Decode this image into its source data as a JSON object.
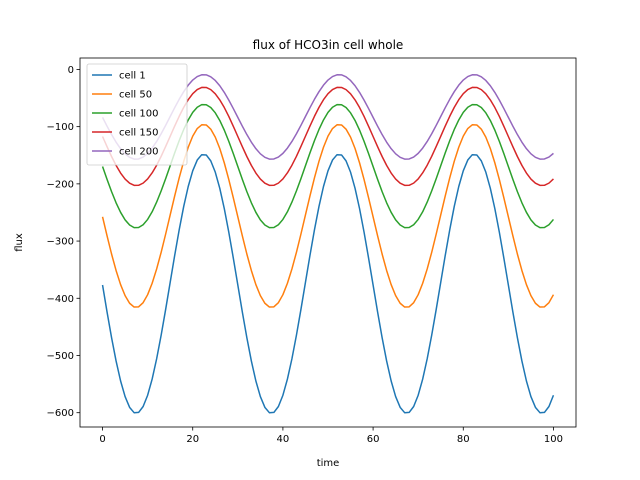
{
  "chart_data": {
    "type": "line",
    "title": "flux of HCO3in cell whole",
    "xlabel": "time",
    "ylabel": "flux",
    "xlim": [
      -5,
      105
    ],
    "ylim": [
      -625,
      20
    ],
    "xticks": [
      0,
      20,
      40,
      60,
      80,
      100
    ],
    "yticks": [
      0,
      -100,
      -200,
      -300,
      -400,
      -500,
      -600
    ],
    "grid": false,
    "legend_position": "top-left",
    "period": 30,
    "x_range": [
      0,
      100
    ],
    "series": [
      {
        "name": "cell 1",
        "color": "#1f77b4",
        "min": -601,
        "max": -148,
        "start": -378,
        "end": -572
      },
      {
        "name": "cell 50",
        "color": "#ff7f0e",
        "min": -416,
        "max": -96,
        "start": -259,
        "end": -396
      },
      {
        "name": "cell 100",
        "color": "#2ca02c",
        "min": -277,
        "max": -61,
        "start": -171,
        "end": -265
      },
      {
        "name": "cell 150",
        "color": "#d62728",
        "min": -203,
        "max": -31,
        "start": -118,
        "end": -193
      },
      {
        "name": "cell 200",
        "color": "#9467bd",
        "min": -157,
        "max": -9,
        "start": -84,
        "end": -147
      }
    ]
  }
}
